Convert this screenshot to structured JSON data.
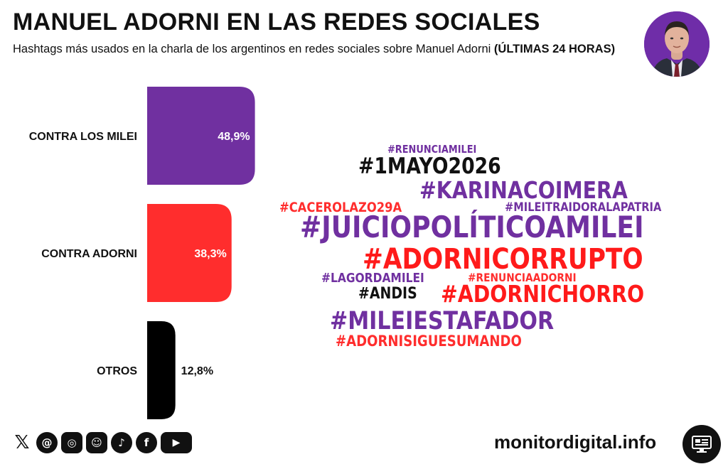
{
  "header": {
    "title": "MANUEL ADORNI EN LAS REDES SOCIALES",
    "subtitle": "Hashtags más usados en la charla de los argentinos en redes sociales sobre Manuel Adorni",
    "subtitle_bold": "(ÚLTIMAS 24 HORAS)"
  },
  "chart_data": {
    "type": "bar",
    "orientation": "horizontal",
    "categories": [
      "CONTRA LOS MILEI",
      "CONTRA ADORNI",
      "OTROS"
    ],
    "values": [
      48.9,
      38.3,
      12.8
    ],
    "value_labels": [
      "48,9%",
      "38,3%",
      "12,8%"
    ],
    "colors": [
      "#7030a0",
      "#ff2d2d",
      "#000000"
    ],
    "value_label_colors": [
      "#ffffff",
      "#ffffff",
      "#111111"
    ],
    "xlim": [
      0,
      100
    ],
    "grid": false
  },
  "wordcloud": {
    "tags": [
      {
        "text": "#RENUNCIAMILEI",
        "color": "#7030a0"
      },
      {
        "text": "#1MAYO2026",
        "color": "#111111"
      },
      {
        "text": "#KARINACOIMERA",
        "color": "#7030a0"
      },
      {
        "text": "#CACEROLAZO29A",
        "color": "#ff2d2d"
      },
      {
        "text": "#MILEITRAIDORALAPATRIA",
        "color": "#7030a0"
      },
      {
        "text": "#JUICIOPOLÍTICOAMILEI",
        "color": "#7030a0"
      },
      {
        "text": "#ADORNICORRUPTO",
        "color": "#ff1a1a"
      },
      {
        "text": "#LAGORDAMILEI",
        "color": "#7030a0"
      },
      {
        "text": "#RENUNCIAADORNI",
        "color": "#ff2d2d"
      },
      {
        "text": "#ANDIS",
        "color": "#111111"
      },
      {
        "text": "#ADORNICHORRO",
        "color": "#ff1a1a"
      },
      {
        "text": "#MILEIESTAFADOR",
        "color": "#7030a0"
      },
      {
        "text": "#ADORNISIGUESUMANDO",
        "color": "#ff2d2d"
      }
    ]
  },
  "footer": {
    "social_icons": [
      "x-icon",
      "threads-icon",
      "instagram-icon",
      "reddit-icon",
      "tiktok-icon",
      "facebook-icon",
      "youtube-icon"
    ],
    "site": "monitordigital.info"
  }
}
